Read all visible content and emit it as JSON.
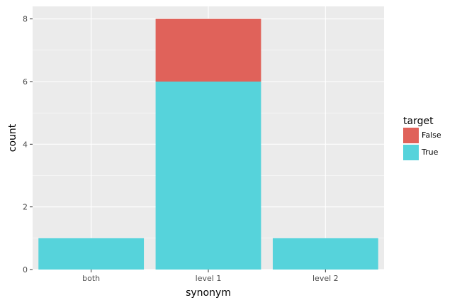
{
  "chart_data": {
    "type": "bar",
    "stacked": true,
    "categories": [
      "both",
      "level 1",
      "level 2"
    ],
    "series": [
      {
        "name": "True",
        "values": [
          1,
          6,
          1
        ],
        "color": "#56d3db"
      },
      {
        "name": "False",
        "values": [
          0,
          2,
          0
        ],
        "color": "#e0625a"
      }
    ],
    "xlabel": "synonym",
    "ylabel": "count",
    "ylim": [
      0,
      8.4
    ],
    "yticks": [
      0,
      2,
      4,
      6,
      8
    ],
    "grid": true,
    "panel_background": "#ebebeb",
    "grid_color": "#ffffff",
    "legend": {
      "title": "target",
      "placement": "right",
      "entries": [
        {
          "label": "False",
          "color": "#e0625a"
        },
        {
          "label": "True",
          "color": "#56d3db"
        }
      ]
    }
  }
}
